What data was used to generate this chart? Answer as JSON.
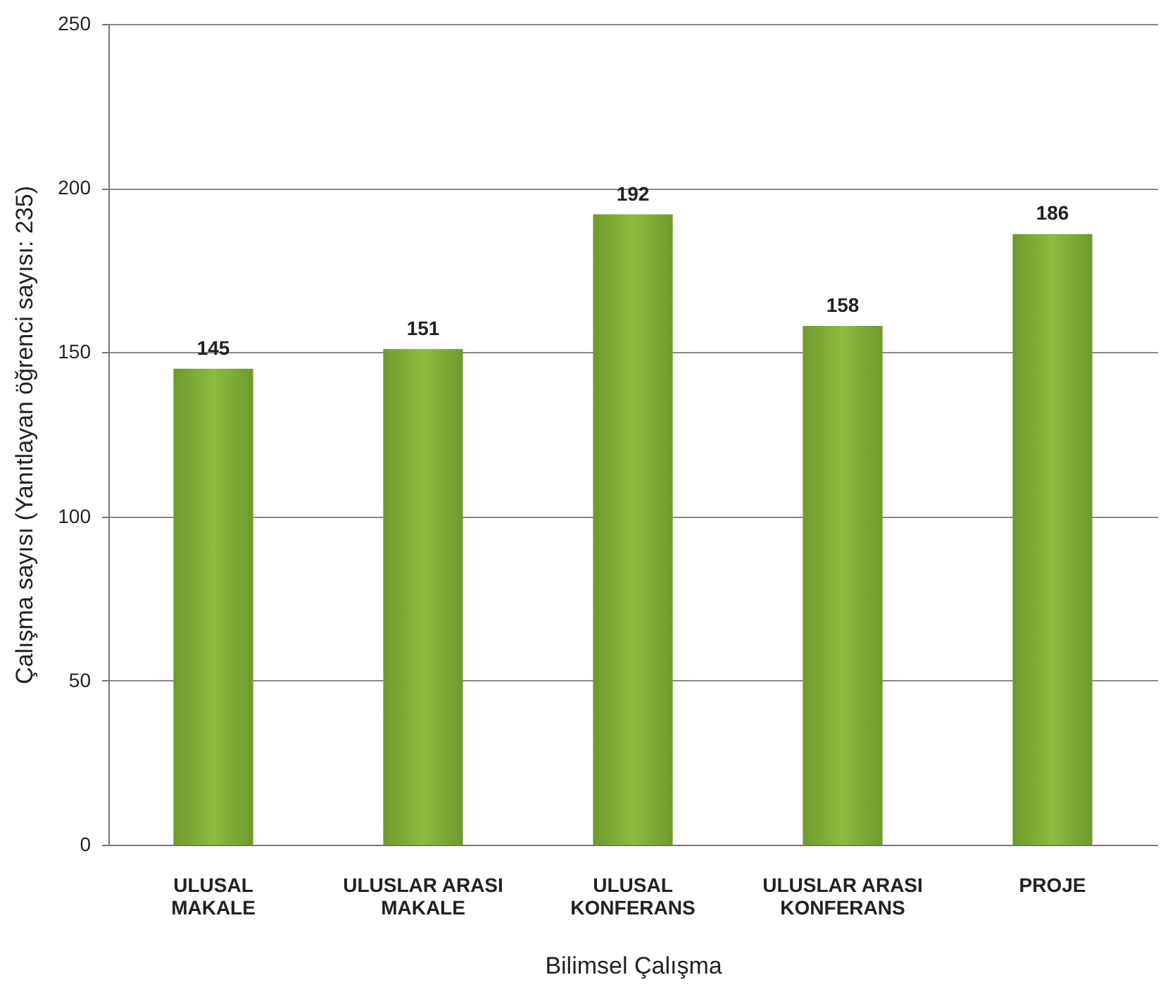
{
  "chart_data": {
    "type": "bar",
    "xlabel": "Bilimsel Çalışma",
    "ylabel": "Çalışma sayısı (Yanıtlayan öğrenci sayısı: 235)",
    "categories": [
      "ULUSAL MAKALE",
      "ULUSLAR ARASI MAKALE",
      "ULUSAL KONFERANS",
      "ULUSLAR ARASI KONFERANS",
      "PROJE"
    ],
    "values": [
      145,
      151,
      192,
      158,
      186
    ],
    "color": "#8cbb3f",
    "ylim": [
      0,
      250
    ],
    "yticks": [
      0,
      50,
      100,
      150,
      200,
      250
    ],
    "grid": "y",
    "data_labels": true
  }
}
